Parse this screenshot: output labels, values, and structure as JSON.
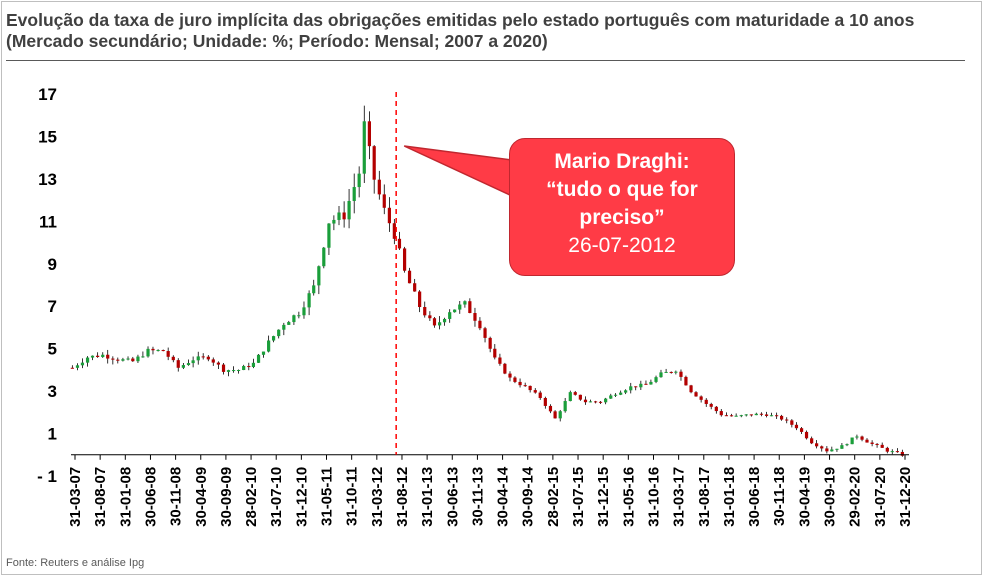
{
  "title": "Evolução da taxa de juro implícita das obrigações emitidas pelo estado português com maturidade a 10 anos (Mercado secundário; Unidade: %; Período: Mensal; 2007 a 2020)",
  "source": "Fonte: Reuters e análise Ipg",
  "annotation": {
    "line1": "Mario Draghi:",
    "line2": "“tudo o que for",
    "line3": "preciso”",
    "date": "26-07-2012",
    "marker_x": "2012-07-26"
  },
  "colors": {
    "up": "#1a9e3a",
    "down": "#b30000",
    "annotation": "#ff3b46",
    "marker_line": "#ff0000"
  },
  "chart_data": {
    "type": "candlestick",
    "title": "",
    "xlabel": "",
    "ylabel": "",
    "ylim": [
      -1,
      17
    ],
    "yticks": [
      "17",
      "15",
      "13",
      "11",
      "9",
      "7",
      "5",
      "3",
      "1",
      "- 1"
    ],
    "ytick_values": [
      17,
      15,
      13,
      11,
      9,
      7,
      5,
      3,
      1,
      -1
    ],
    "x_range": [
      "2007-03-31",
      "2020-12-31"
    ],
    "xticks": [
      "31-03-07",
      "31-08-07",
      "31-01-08",
      "30-06-08",
      "30-11-08",
      "30-04-09",
      "30-09-09",
      "28-02-10",
      "31-07-10",
      "31-12-10",
      "31-05-11",
      "31-10-11",
      "31-03-12",
      "31-08-12",
      "31-01-13",
      "30-06-13",
      "30-11-13",
      "30-04-14",
      "30-09-14",
      "28-02-15",
      "31-07-15",
      "31-12-15",
      "31-05-16",
      "31-10-16",
      "31-03-17",
      "31-08-17",
      "31-01-18",
      "30-06-18",
      "30-11-18",
      "30-04-19",
      "30-09-19",
      "29-02-20",
      "31-07-20",
      "31-12-20"
    ],
    "grid": false,
    "legend": "none",
    "candle_close_path": [
      [
        "2007-03",
        4.1
      ],
      [
        "2007-06",
        4.6
      ],
      [
        "2007-09",
        4.7
      ],
      [
        "2007-12",
        4.5
      ],
      [
        "2008-03",
        4.4
      ],
      [
        "2008-06",
        4.9
      ],
      [
        "2008-09",
        4.9
      ],
      [
        "2008-12",
        4.1
      ],
      [
        "2009-03",
        4.5
      ],
      [
        "2009-06",
        4.6
      ],
      [
        "2009-09",
        4.0
      ],
      [
        "2009-12",
        4.0
      ],
      [
        "2010-03",
        4.3
      ],
      [
        "2010-06",
        5.3
      ],
      [
        "2010-09",
        6.2
      ],
      [
        "2010-12",
        6.7
      ],
      [
        "2011-03",
        7.9
      ],
      [
        "2011-06",
        11.0
      ],
      [
        "2011-09",
        11.3
      ],
      [
        "2011-12",
        13.3
      ],
      [
        "2012-01",
        15.5
      ],
      [
        "2012-03",
        13.0
      ],
      [
        "2012-05",
        11.5
      ],
      [
        "2012-07",
        10.4
      ],
      [
        "2012-09",
        8.6
      ],
      [
        "2012-12",
        7.0
      ],
      [
        "2013-03",
        6.0
      ],
      [
        "2013-06",
        6.8
      ],
      [
        "2013-09",
        7.1
      ],
      [
        "2013-12",
        6.1
      ],
      [
        "2014-03",
        4.5
      ],
      [
        "2014-06",
        3.6
      ],
      [
        "2014-09",
        3.2
      ],
      [
        "2014-12",
        2.7
      ],
      [
        "2015-03",
        1.7
      ],
      [
        "2015-06",
        2.9
      ],
      [
        "2015-09",
        2.5
      ],
      [
        "2015-12",
        2.5
      ],
      [
        "2016-03",
        2.9
      ],
      [
        "2016-06",
        3.2
      ],
      [
        "2016-09",
        3.3
      ],
      [
        "2016-12",
        3.8
      ],
      [
        "2017-03",
        4.0
      ],
      [
        "2017-06",
        3.0
      ],
      [
        "2017-09",
        2.4
      ],
      [
        "2017-12",
        1.9
      ],
      [
        "2018-03",
        1.8
      ],
      [
        "2018-06",
        1.9
      ],
      [
        "2018-09",
        1.9
      ],
      [
        "2018-12",
        1.7
      ],
      [
        "2019-03",
        1.3
      ],
      [
        "2019-06",
        0.6
      ],
      [
        "2019-09",
        0.2
      ],
      [
        "2019-12",
        0.4
      ],
      [
        "2020-03",
        0.9
      ],
      [
        "2020-06",
        0.5
      ],
      [
        "2020-09",
        0.2
      ],
      [
        "2020-12",
        0.0
      ]
    ]
  }
}
